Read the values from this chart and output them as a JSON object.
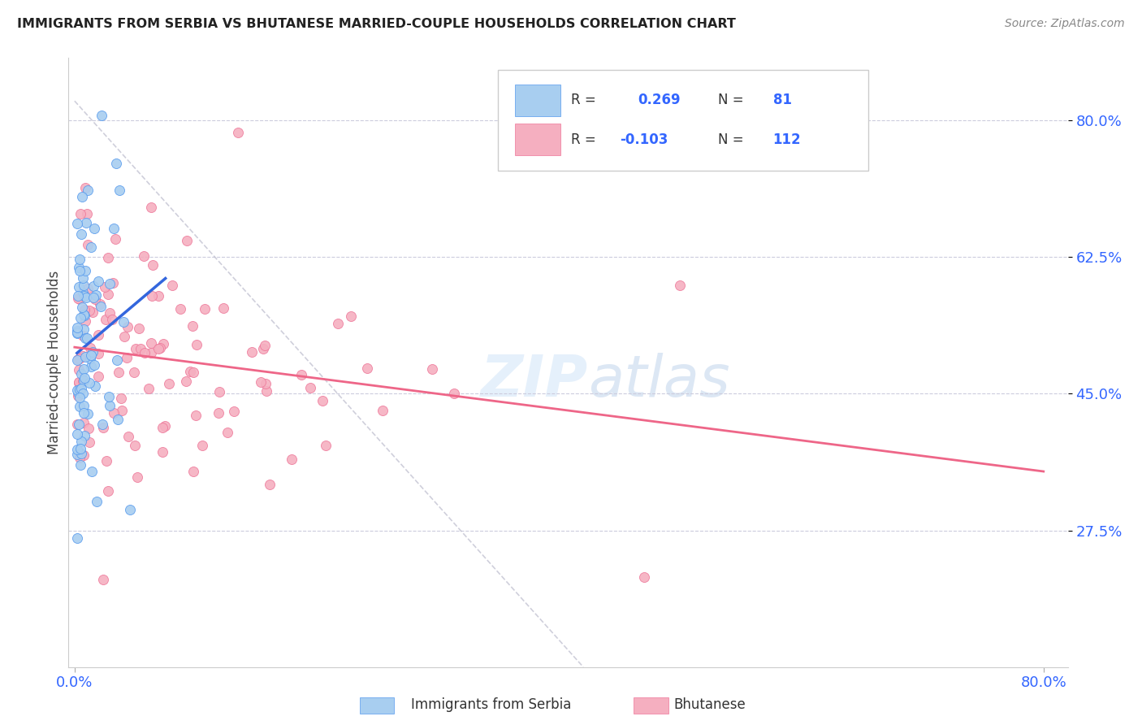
{
  "title": "IMMIGRANTS FROM SERBIA VS BHUTANESE MARRIED-COUPLE HOUSEHOLDS CORRELATION CHART",
  "source": "Source: ZipAtlas.com",
  "ylabel": "Married-couple Households",
  "ytick_labels": [
    "80.0%",
    "62.5%",
    "45.0%",
    "27.5%"
  ],
  "ytick_values": [
    0.8,
    0.625,
    0.45,
    0.275
  ],
  "xtick_labels": [
    "0.0%",
    "80.0%"
  ],
  "xtick_values": [
    0.0,
    0.8
  ],
  "xlim": [
    -0.005,
    0.82
  ],
  "ylim": [
    0.1,
    0.88
  ],
  "color_serbia_fill": "#a8cef0",
  "color_serbia_edge": "#5599ee",
  "color_bhutanese_fill": "#f5afc0",
  "color_bhutanese_edge": "#ee7799",
  "color_serbia_line": "#3366dd",
  "color_bhutanese_line": "#ee6688",
  "color_dashed": "#bbbbcc",
  "watermark": "ZIPatlas",
  "legend_r1_text": "R = ",
  "legend_r1_val": "0.269",
  "legend_n1_text": "N = ",
  "legend_n1_val": "81",
  "legend_r2_text": "R = ",
  "legend_r2_val": "-0.103",
  "legend_n2_text": "N = ",
  "legend_n2_val": "112",
  "legend_color": "#3366ff",
  "bottom_label1": "Immigrants from Serbia",
  "bottom_label2": "Bhutanese"
}
